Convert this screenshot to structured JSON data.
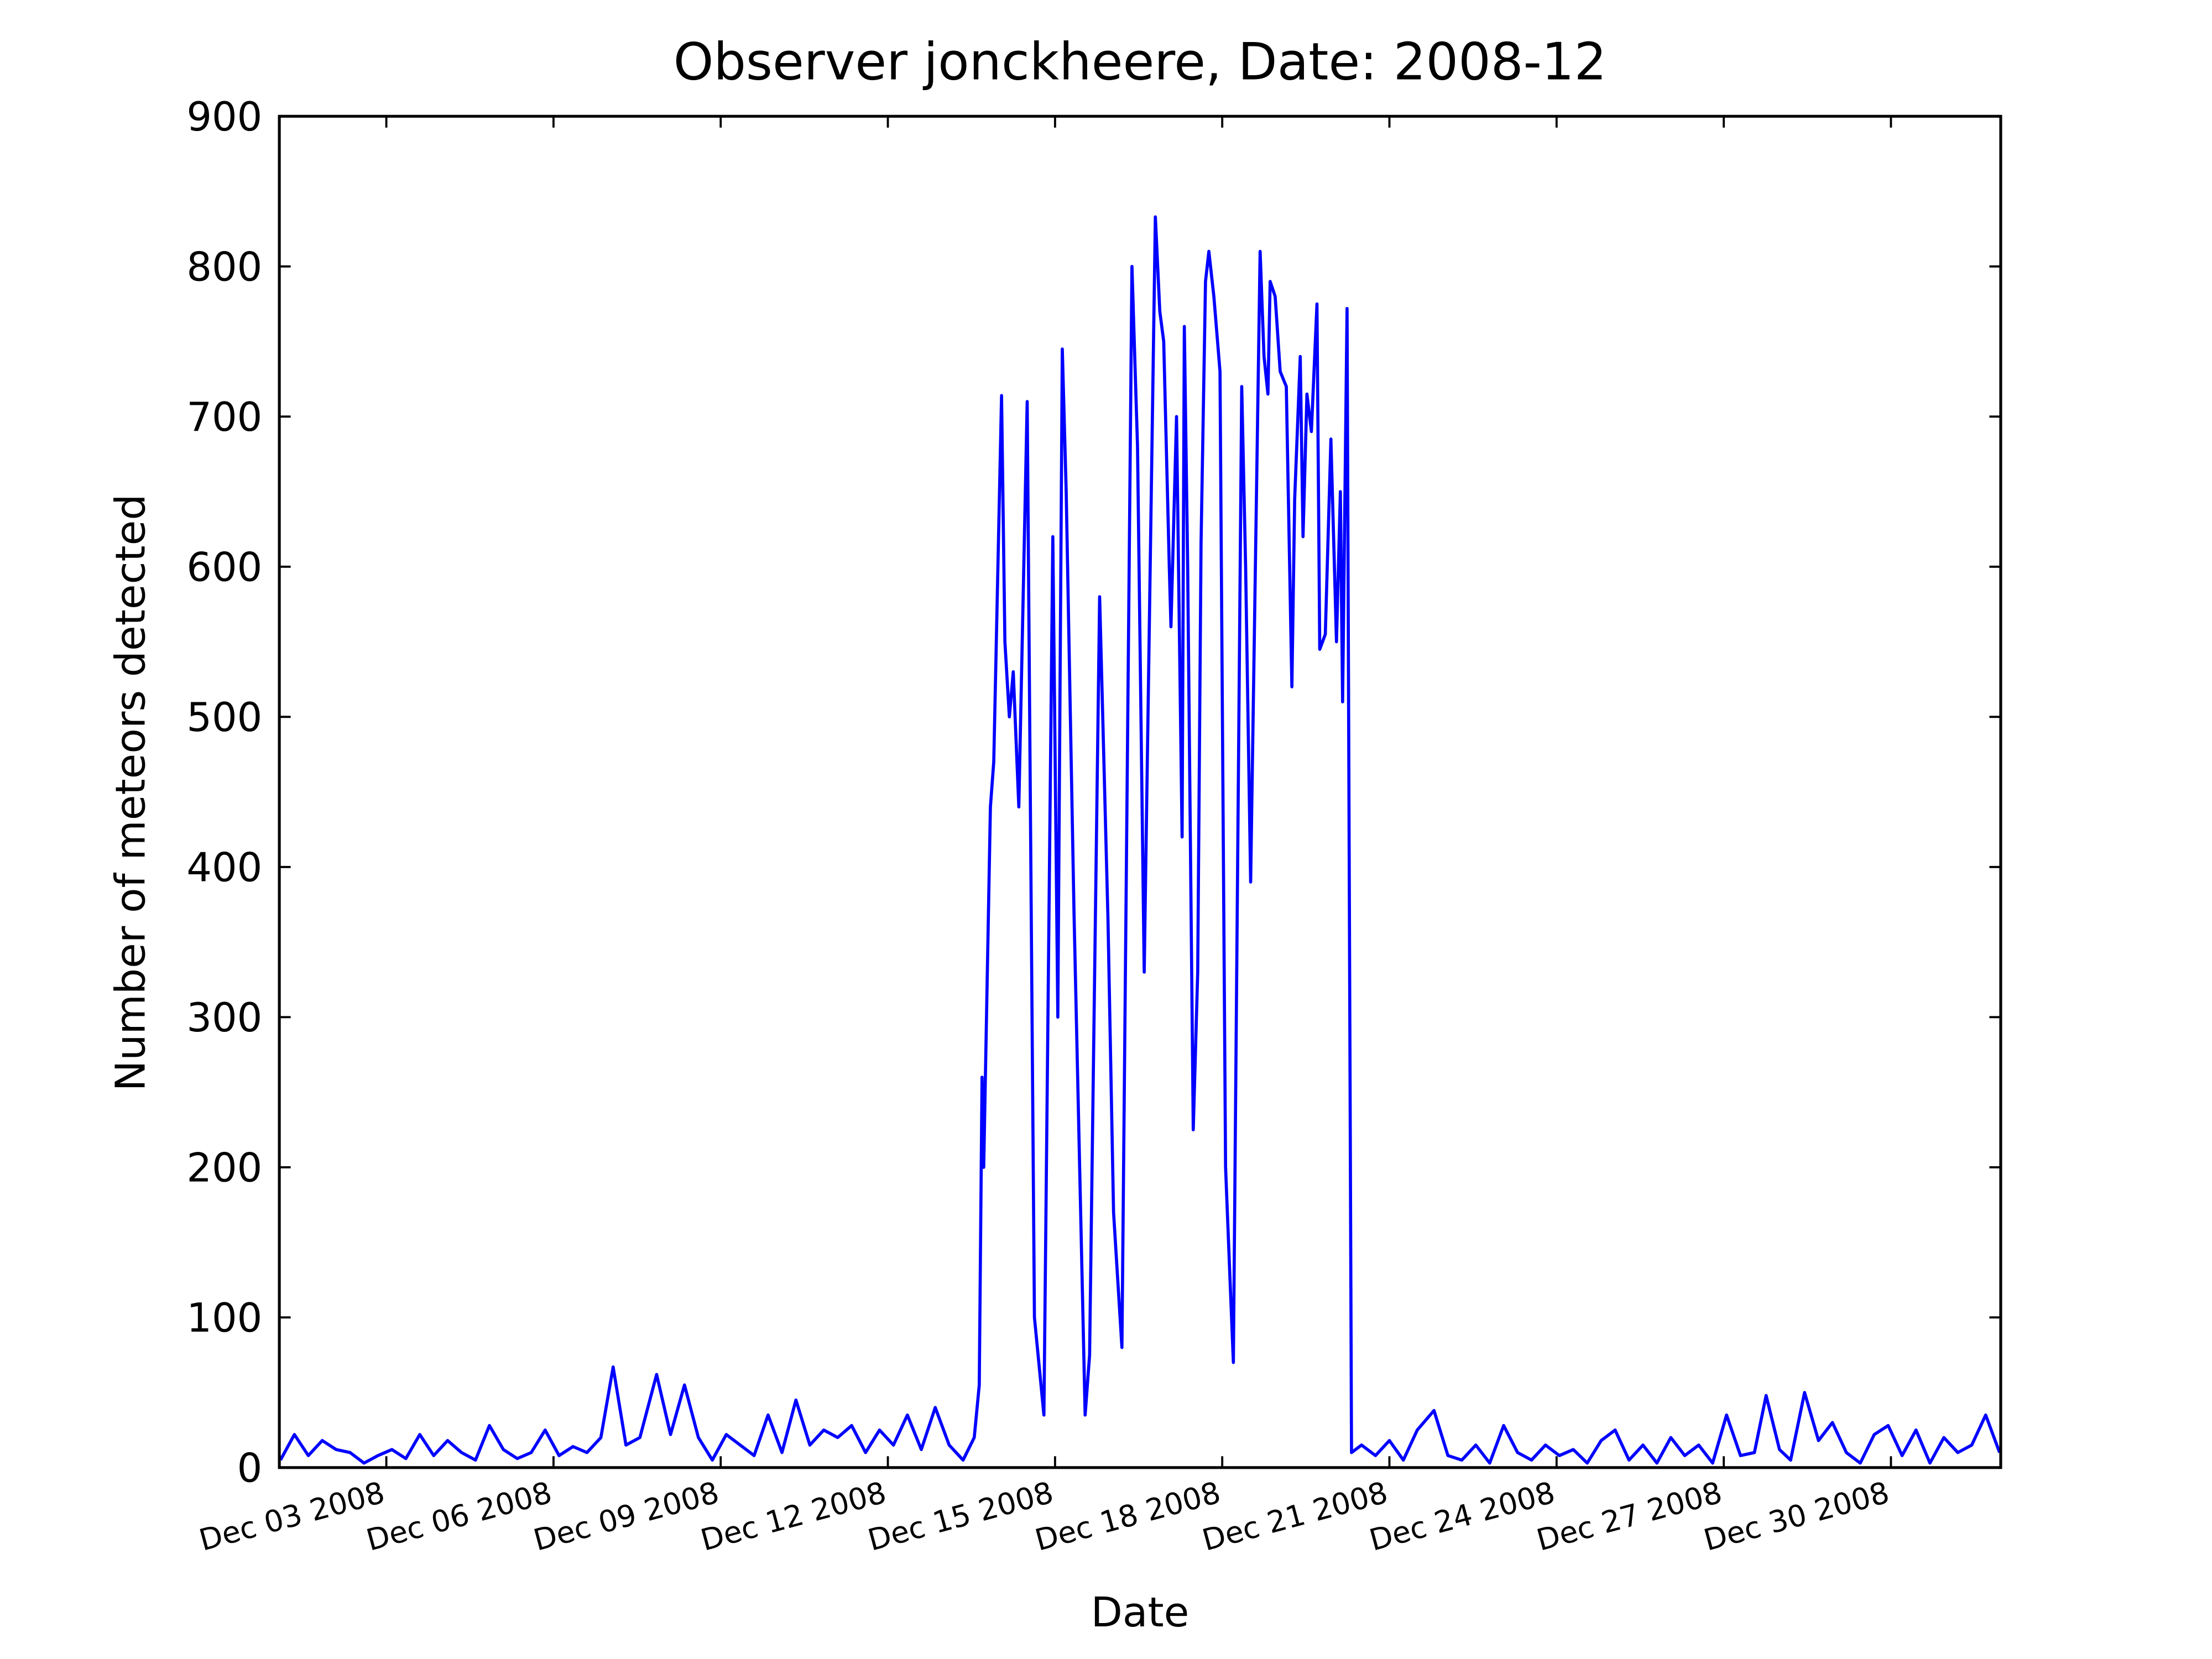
{
  "chart_data": {
    "type": "line",
    "title": "Observer jonckheere, Date: 2008-12",
    "x_label": "Date",
    "y_label": "Number of meteors detected",
    "xlim": [
      1.08,
      31.97
    ],
    "ylim": [
      0,
      900
    ],
    "xticks": [
      {
        "value": 3,
        "label": "Dec 03 2008"
      },
      {
        "value": 6,
        "label": "Dec 06 2008"
      },
      {
        "value": 9,
        "label": "Dec 09 2008"
      },
      {
        "value": 12,
        "label": "Dec 12 2008"
      },
      {
        "value": 15,
        "label": "Dec 15 2008"
      },
      {
        "value": 18,
        "label": "Dec 18 2008"
      },
      {
        "value": 21,
        "label": "Dec 21 2008"
      },
      {
        "value": 24,
        "label": "Dec 24 2008"
      },
      {
        "value": 27,
        "label": "Dec 27 2008"
      },
      {
        "value": 30,
        "label": "Dec 30 2008"
      }
    ],
    "yticks": [
      0,
      100,
      200,
      300,
      400,
      500,
      600,
      700,
      800,
      900
    ],
    "grid": false,
    "series": [
      {
        "color": "#0000ff",
        "x": [
          1.1,
          1.35,
          1.6,
          1.85,
          2.1,
          2.35,
          2.6,
          2.85,
          3.1,
          3.35,
          3.6,
          3.85,
          4.1,
          4.35,
          4.6,
          4.85,
          5.1,
          5.35,
          5.6,
          5.85,
          6.1,
          6.35,
          6.6,
          6.85,
          7.07,
          7.3,
          7.55,
          7.85,
          8.1,
          8.35,
          8.6,
          8.85,
          9.1,
          9.35,
          9.6,
          9.85,
          10.1,
          10.35,
          10.6,
          10.85,
          11.1,
          11.35,
          11.6,
          11.85,
          12.1,
          12.35,
          12.6,
          12.85,
          13.1,
          13.35,
          13.55,
          13.64,
          13.69,
          13.72,
          13.84,
          13.9,
          14.04,
          14.1,
          14.18,
          14.25,
          14.35,
          14.5,
          14.63,
          14.8,
          14.96,
          15.05,
          15.13,
          15.2,
          15.34,
          15.54,
          15.62,
          15.8,
          15.95,
          16.05,
          16.2,
          16.38,
          16.48,
          16.6,
          16.8,
          16.88,
          16.95,
          17.05,
          17.08,
          17.18,
          17.28,
          17.32,
          17.38,
          17.48,
          17.56,
          17.62,
          17.7,
          17.76,
          17.85,
          17.96,
          18.06,
          18.14,
          18.2,
          18.35,
          18.42,
          18.51,
          18.68,
          18.75,
          18.82,
          18.86,
          18.95,
          19.04,
          19.15,
          19.25,
          19.3,
          19.4,
          19.45,
          19.52,
          19.6,
          19.7,
          19.75,
          19.85,
          19.95,
          20.05,
          20.12,
          20.16,
          20.24,
          20.32,
          20.5,
          20.75,
          21.0,
          21.25,
          21.5,
          21.8,
          22.05,
          22.3,
          22.55,
          22.8,
          23.05,
          23.3,
          23.55,
          23.8,
          24.05,
          24.3,
          24.55,
          24.8,
          25.05,
          25.3,
          25.55,
          25.8,
          26.05,
          26.3,
          26.55,
          26.8,
          27.05,
          27.3,
          27.55,
          27.76,
          28.0,
          28.2,
          28.45,
          28.7,
          28.95,
          29.2,
          29.45,
          29.7,
          29.95,
          30.2,
          30.45,
          30.7,
          30.95,
          31.2,
          31.45,
          31.7,
          31.95
        ],
        "values": [
          5,
          22,
          8,
          18,
          12,
          10,
          3,
          8,
          12,
          6,
          22,
          8,
          18,
          10,
          5,
          28,
          12,
          6,
          10,
          25,
          8,
          14,
          10,
          20,
          67,
          15,
          20,
          62,
          22,
          55,
          20,
          5,
          22,
          15,
          8,
          35,
          10,
          45,
          15,
          25,
          20,
          28,
          10,
          25,
          15,
          35,
          12,
          40,
          15,
          5,
          20,
          55,
          260,
          200,
          440,
          470,
          714,
          550,
          500,
          530,
          440,
          710,
          100,
          35,
          620,
          300,
          745,
          650,
          370,
          35,
          75,
          580,
          365,
          170,
          80,
          800,
          680,
          330,
          833,
          770,
          750,
          600,
          560,
          700,
          420,
          760,
          600,
          225,
          330,
          615,
          790,
          810,
          780,
          730,
          200,
          125,
          70,
          720,
          600,
          390,
          810,
          740,
          715,
          790,
          780,
          730,
          720,
          520,
          645,
          740,
          620,
          715,
          690,
          775,
          545,
          555,
          685,
          550,
          650,
          510,
          772,
          10,
          15,
          8,
          18,
          5,
          25,
          38,
          8,
          5,
          15,
          3,
          28,
          10,
          5,
          15,
          8,
          12,
          3,
          18,
          25,
          5,
          15,
          3,
          20,
          8,
          15,
          3,
          35,
          8,
          10,
          48,
          12,
          5,
          50,
          18,
          30,
          10,
          3,
          22,
          28,
          8,
          25,
          3,
          20,
          10,
          15,
          35,
          10
        ]
      }
    ]
  }
}
